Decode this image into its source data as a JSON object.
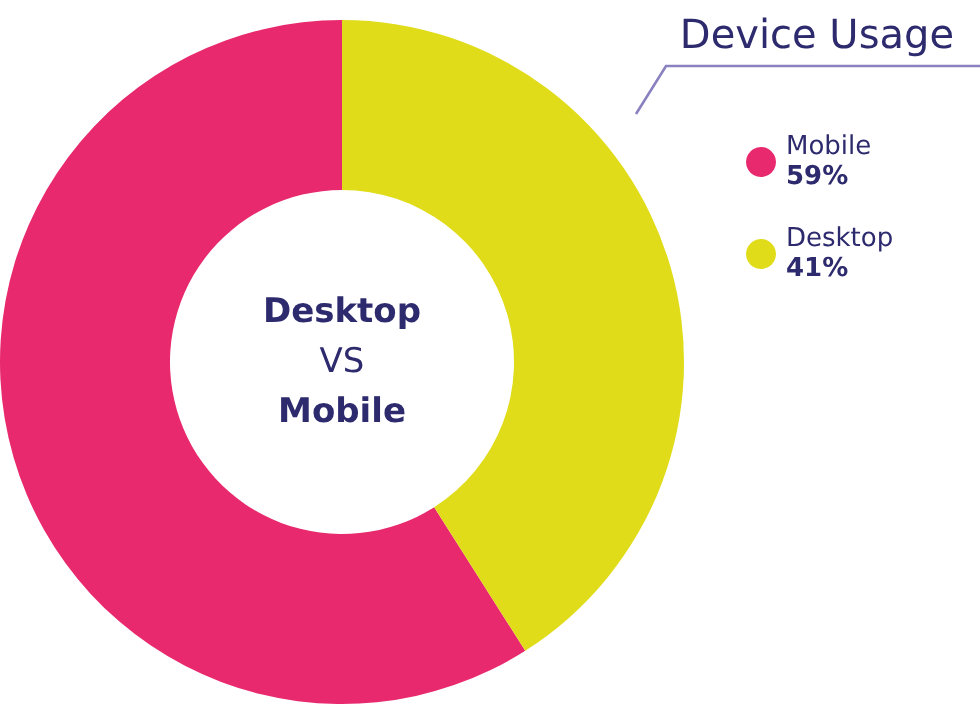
{
  "chart_data": {
    "type": "donut",
    "title": "Device Usage",
    "categories": [
      "Mobile",
      "Desktop"
    ],
    "values": [
      59,
      41
    ],
    "value_labels": [
      "59%",
      "41%"
    ],
    "colors": [
      "#e8296e",
      "#e0dc1a"
    ],
    "legend": "right",
    "annotations": [
      "Desktop",
      "VS",
      "Mobile"
    ]
  }
}
